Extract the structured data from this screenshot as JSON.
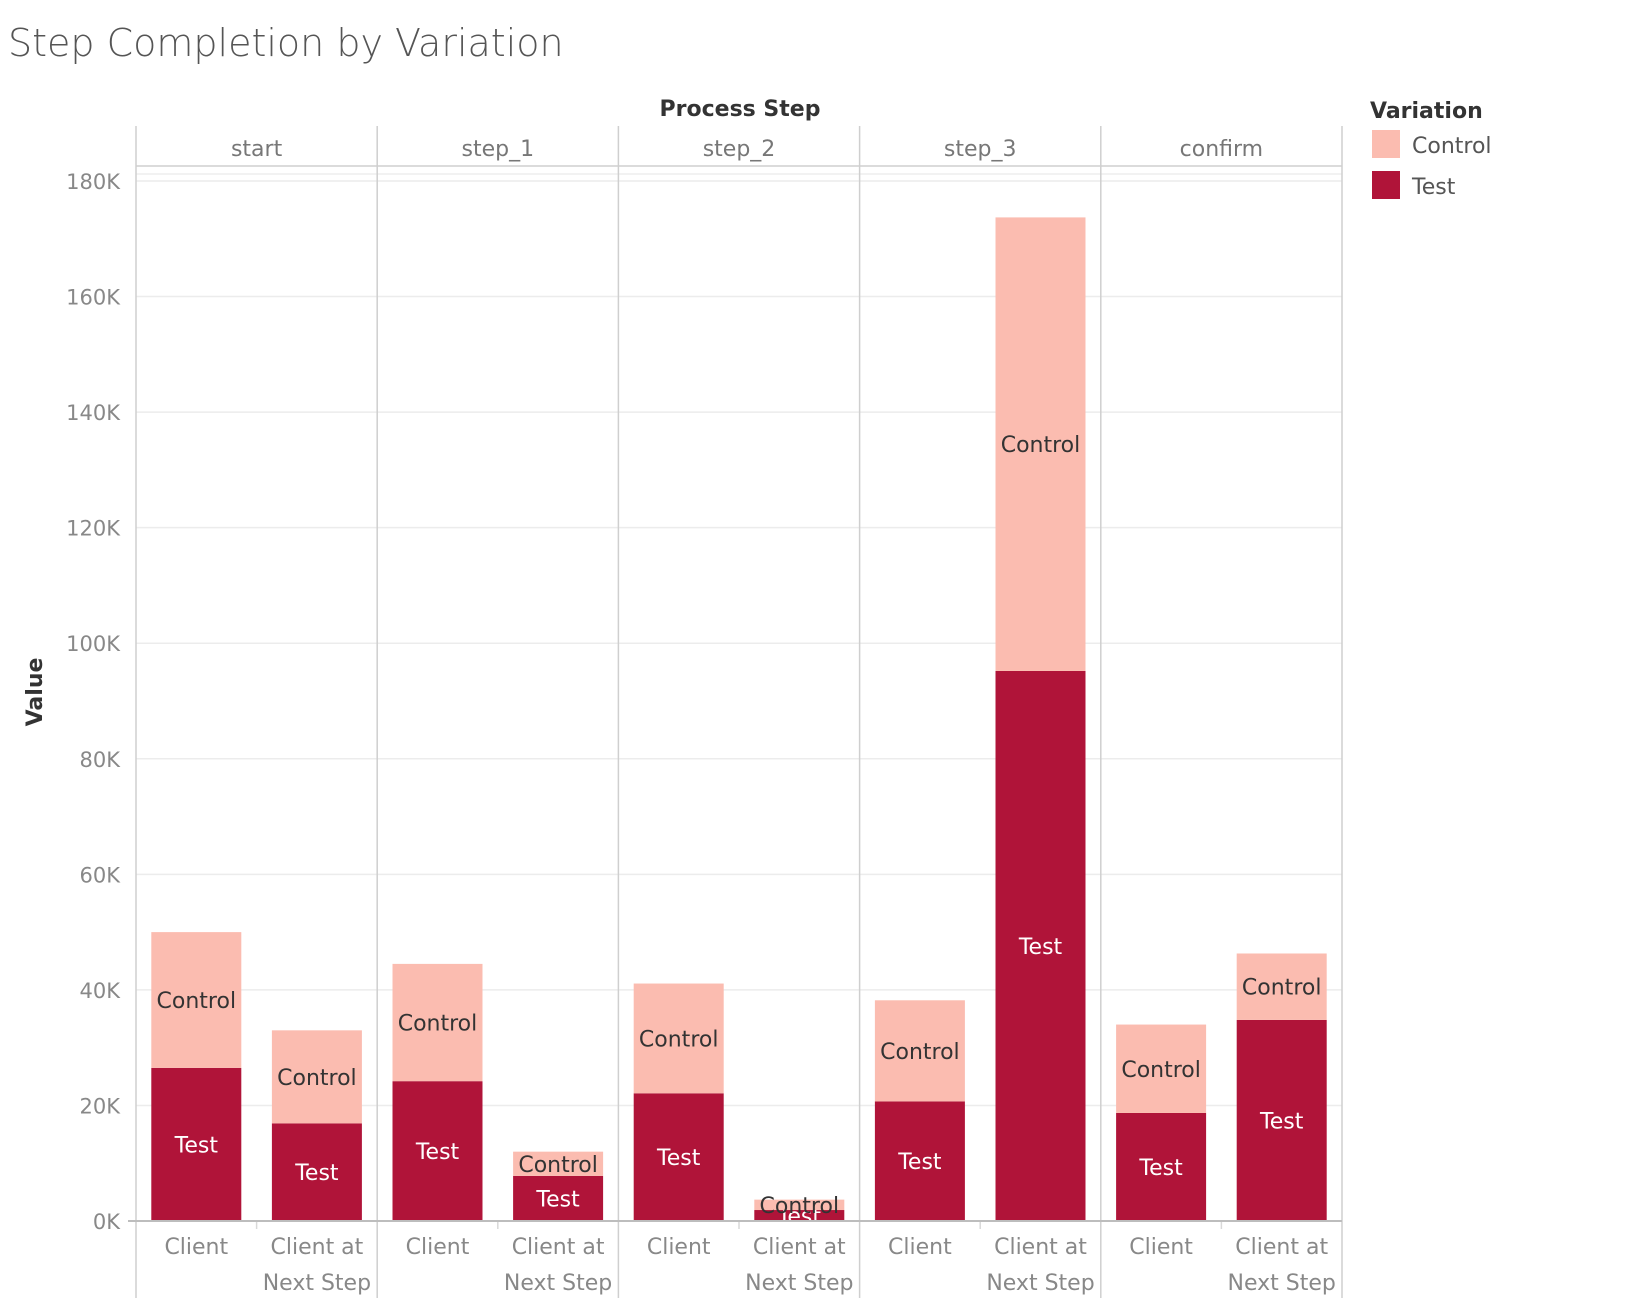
{
  "chart_data": {
    "type": "bar",
    "stacked": true,
    "title": "Step Completion by Variation",
    "column_header": "Process Step",
    "ylabel": "Value",
    "ylim": [
      0,
      180000
    ],
    "yticks": [
      0,
      20000,
      40000,
      60000,
      80000,
      100000,
      120000,
      140000,
      160000,
      180000
    ],
    "ytick_labels": [
      "0K",
      "20K",
      "40K",
      "60K",
      "80K",
      "100K",
      "120K",
      "140K",
      "160K",
      "180K"
    ],
    "grid": true,
    "legend": {
      "title": "Variation",
      "position": "top-right",
      "items": [
        {
          "name": "Control",
          "color": "#fbbcb0"
        },
        {
          "name": "Test",
          "color": "#b01439"
        }
      ]
    },
    "categories": [
      {
        "lines": [
          "Client"
        ]
      },
      {
        "lines": [
          "Client at",
          "Next Step"
        ]
      }
    ],
    "panels": [
      {
        "name": "start",
        "bars": [
          {
            "Test": 26500,
            "Control": 23500
          },
          {
            "Test": 16900,
            "Control": 16100
          }
        ]
      },
      {
        "name": "step_1",
        "bars": [
          {
            "Test": 24200,
            "Control": 20300
          },
          {
            "Test": 7800,
            "Control": 4200
          }
        ]
      },
      {
        "name": "step_2",
        "bars": [
          {
            "Test": 22100,
            "Control": 19000
          },
          {
            "Test": 1900,
            "Control": 1800
          }
        ]
      },
      {
        "name": "step_3",
        "bars": [
          {
            "Test": 20700,
            "Control": 17500
          },
          {
            "Test": 95200,
            "Control": 78500
          }
        ]
      },
      {
        "name": "confirm",
        "bars": [
          {
            "Test": 18700,
            "Control": 15300
          },
          {
            "Test": 34800,
            "Control": 11500
          }
        ]
      }
    ],
    "segment_label_colors": {
      "Control": "#333333",
      "Test": "#ffffff"
    }
  }
}
